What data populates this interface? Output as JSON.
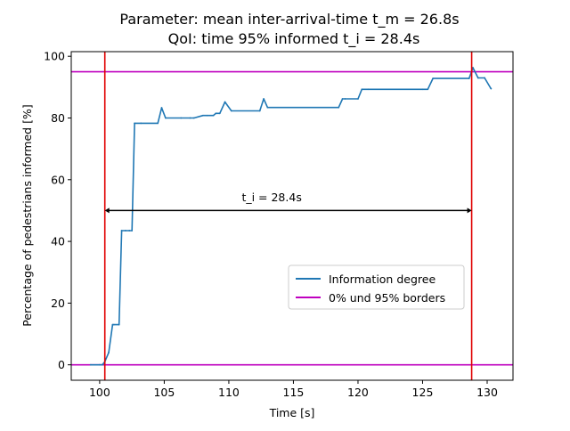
{
  "chart_data": {
    "type": "line",
    "title": "Parameter: mean inter-arrival-time t_m = 26.8s",
    "subtitle": "QoI: time 95% informed t_i = 28.4s",
    "xlabel": "Time [s]",
    "ylabel": "Percentage of pedestrians informed [%]",
    "xlim": [
      97.8,
      132.0
    ],
    "ylim": [
      -5,
      101.5
    ],
    "xticks": [
      100,
      105,
      110,
      115,
      120,
      125,
      130
    ],
    "yticks": [
      0,
      20,
      40,
      60,
      80,
      100
    ],
    "grid": false,
    "legend_position": "center-right",
    "series": [
      {
        "name": "Information degree",
        "color": "#1f77b4",
        "x": [
          99.3,
          100.0,
          100.2,
          100.4,
          100.7,
          101.0,
          101.1,
          101.5,
          101.7,
          102.0,
          102.3,
          102.5,
          102.7,
          103.2,
          104.5,
          104.8,
          105.1,
          106.3,
          107.0,
          107.3,
          108.0,
          108.3,
          108.8,
          109.0,
          109.3,
          109.7,
          110.2,
          112.4,
          112.7,
          113.0,
          118.5,
          118.8,
          119.0,
          120.0,
          120.3,
          120.8,
          125.0,
          125.4,
          125.8,
          128.6,
          128.9,
          129.3,
          129.8,
          130.3
        ],
        "y": [
          0,
          0,
          0,
          1,
          4,
          13,
          13,
          13,
          43.5,
          43.5,
          43.5,
          43.5,
          78.3,
          78.3,
          78.3,
          83.3,
          80,
          80,
          80,
          80,
          80.8,
          80.8,
          80.8,
          81.5,
          81.5,
          85.2,
          82.3,
          82.3,
          86.2,
          83.4,
          83.4,
          86.2,
          86.2,
          86.2,
          89.3,
          89.3,
          89.3,
          89.3,
          92.8,
          92.8,
          96.3,
          93,
          93,
          89.5
        ]
      },
      {
        "name": "0% und 95% borders",
        "color": "#bf00bf",
        "levels": [
          0,
          95
        ]
      }
    ],
    "vertical_markers": {
      "color": "#e00000",
      "x": [
        100.4,
        128.8
      ]
    },
    "annotation": {
      "text": "t_i = 28.4s",
      "arrow_from_x": 100.4,
      "arrow_to_x": 128.8,
      "arrow_y": 50,
      "label_x": 111.0,
      "label_y": 53
    }
  }
}
